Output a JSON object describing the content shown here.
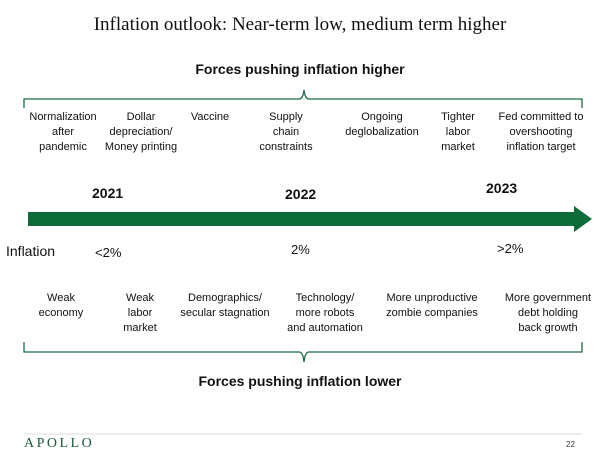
{
  "title": "Inflation outlook: Near-term low, medium term higher",
  "higher": {
    "heading": "Forces pushing inflation higher",
    "forces": [
      {
        "lines": [
          "Normalization",
          "after",
          "pandemic"
        ]
      },
      {
        "lines": [
          "Dollar",
          "depreciation/",
          "Money printing"
        ]
      },
      {
        "lines": [
          "Vaccine"
        ]
      },
      {
        "lines": [
          "Supply",
          "chain",
          "constraints"
        ]
      },
      {
        "lines": [
          "Ongoing",
          "deglobalization"
        ]
      },
      {
        "lines": [
          "Tighter",
          "labor",
          "market"
        ]
      },
      {
        "lines": [
          "Fed committed to",
          "overshooting",
          "inflation target"
        ]
      }
    ]
  },
  "timeline": {
    "years": [
      "2021",
      "2022",
      "2023"
    ],
    "inflation_label": "Inflation",
    "inflation_values": [
      "<2%",
      "2%",
      ">2%"
    ],
    "arrow_color": "#0e6b3a"
  },
  "lower": {
    "heading": "Forces pushing inflation lower",
    "forces": [
      {
        "lines": [
          "Weak",
          "economy"
        ]
      },
      {
        "lines": [
          "Weak",
          "labor",
          "market"
        ]
      },
      {
        "lines": [
          "Demographics/",
          "secular stagnation"
        ]
      },
      {
        "lines": [
          "Technology/",
          "more robots",
          "and automation"
        ]
      },
      {
        "lines": [
          "More unproductive",
          "zombie companies"
        ]
      },
      {
        "lines": [
          "More government",
          "debt holding",
          "back growth"
        ]
      }
    ]
  },
  "footer": {
    "logo": "APOLLO",
    "page_number": "22",
    "brand_color": "#1e5a3a"
  }
}
